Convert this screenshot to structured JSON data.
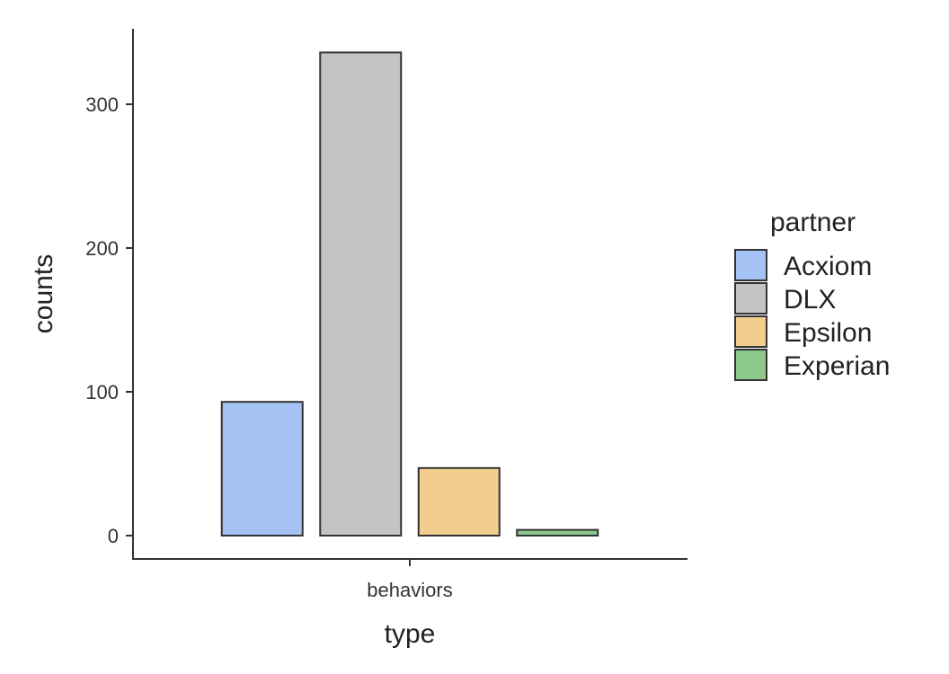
{
  "chart_data": {
    "type": "bar",
    "categories": [
      "behaviors"
    ],
    "xlabel": "type",
    "ylabel": "counts",
    "ylim": [
      0,
      350
    ],
    "yticks": [
      0,
      100,
      200,
      300
    ],
    "grid": false,
    "legend": {
      "title": "partner",
      "placement": "right"
    },
    "series": [
      {
        "name": "Acxiom",
        "values": [
          93
        ],
        "color": "#a4c2f4"
      },
      {
        "name": "DLX",
        "values": [
          336
        ],
        "color": "#c4c4c4"
      },
      {
        "name": "Epsilon",
        "values": [
          47
        ],
        "color": "#f1ce8e"
      },
      {
        "name": "Experian",
        "values": [
          4
        ],
        "color": "#8cc78c"
      }
    ]
  }
}
